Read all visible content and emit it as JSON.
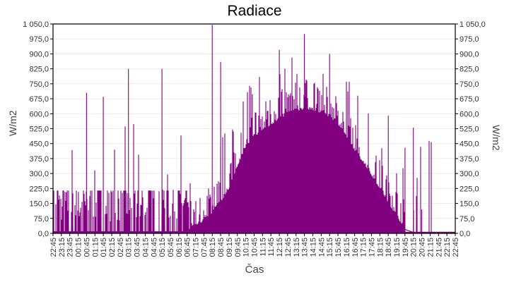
{
  "chart_data": {
    "type": "bar",
    "title": "Radiace",
    "xlabel": "Čas",
    "ylabel": "W/m2",
    "ylabel_right": "W/m2",
    "ylim": [
      0,
      1050
    ],
    "yticks": [
      0,
      75,
      150,
      225,
      300,
      375,
      450,
      525,
      600,
      675,
      750,
      825,
      900,
      975,
      1050
    ],
    "ytick_labels": [
      "0,0",
      "75,0",
      "150,0",
      "225,0",
      "300,0",
      "375,0",
      "450,0",
      "525,0",
      "600,0",
      "675,0",
      "750,0",
      "825,0",
      "900,0",
      "975,0",
      "1 050,0"
    ],
    "xtick_labels": [
      "22:45",
      "23:15",
      "23:45",
      "00:15",
      "00:45",
      "01:15",
      "01:45",
      "02:15",
      "02:45",
      "03:15",
      "03:45",
      "04:15",
      "04:45",
      "05:15",
      "05:45",
      "06:15",
      "06:45",
      "07:15",
      "07:45",
      "08:15",
      "08:45",
      "09:15",
      "09:45",
      "10:15",
      "10:45",
      "11:15",
      "11:45",
      "12:15",
      "12:45",
      "13:15",
      "13:45",
      "14:15",
      "14:45",
      "15:15",
      "15:45",
      "16:15",
      "16:45",
      "17:15",
      "17:45",
      "18:15",
      "18:45",
      "19:15",
      "19:45",
      "20:15",
      "20:45",
      "21:15",
      "21:45",
      "22:15",
      "22:45"
    ],
    "grid": true,
    "legend": "none",
    "bar_color": "#800080",
    "envelope_description": "Night (22:45–06:45): baseline near 10 with frequent bars ~50–220 and spikes up to ~825. Day: smooth curve rising from ~06:45, ~150 at 08:45, ~450 at 10:15, peak ~620 around 13:45, ~580 at 15:15, ~400 at 16:45, ~225 at 18:15, ~0 at 19:45. Spikes above envelope up to 1045 at ~08:15.",
    "key_points": [
      {
        "x": "08:15",
        "y": 1045
      },
      {
        "x": "08:45",
        "y": 860
      },
      {
        "x": "00:45",
        "y": 705
      },
      {
        "x": "01:45",
        "y": 685
      },
      {
        "x": "03:15",
        "y": 825
      },
      {
        "x": "05:15",
        "y": 825
      },
      {
        "x": "13:45",
        "y": 1000
      },
      {
        "x": "15:15",
        "y": 900
      },
      {
        "x": "12:15",
        "y": 920
      },
      {
        "x": "18:45",
        "y": 590
      },
      {
        "x": "19:45",
        "y": 430
      },
      {
        "x": "20:15",
        "y": 530
      },
      {
        "x": "20:45",
        "y": 120
      }
    ],
    "envelope": [
      {
        "x": "06:45",
        "y": 10
      },
      {
        "x": "07:15",
        "y": 30
      },
      {
        "x": "07:45",
        "y": 60
      },
      {
        "x": "08:15",
        "y": 100
      },
      {
        "x": "08:45",
        "y": 150
      },
      {
        "x": "09:15",
        "y": 220
      },
      {
        "x": "09:45",
        "y": 330
      },
      {
        "x": "10:15",
        "y": 430
      },
      {
        "x": "10:45",
        "y": 480
      },
      {
        "x": "11:15",
        "y": 510
      },
      {
        "x": "11:45",
        "y": 540
      },
      {
        "x": "12:15",
        "y": 570
      },
      {
        "x": "12:45",
        "y": 595
      },
      {
        "x": "13:15",
        "y": 610
      },
      {
        "x": "13:45",
        "y": 620
      },
      {
        "x": "14:15",
        "y": 615
      },
      {
        "x": "14:45",
        "y": 600
      },
      {
        "x": "15:15",
        "y": 580
      },
      {
        "x": "15:45",
        "y": 545
      },
      {
        "x": "16:15",
        "y": 480
      },
      {
        "x": "16:45",
        "y": 410
      },
      {
        "x": "17:15",
        "y": 350
      },
      {
        "x": "17:45",
        "y": 285
      },
      {
        "x": "18:15",
        "y": 220
      },
      {
        "x": "18:45",
        "y": 150
      },
      {
        "x": "19:15",
        "y": 80
      },
      {
        "x": "19:45",
        "y": 20
      },
      {
        "x": "20:15",
        "y": 5
      },
      {
        "x": "22:45",
        "y": 5
      }
    ]
  }
}
